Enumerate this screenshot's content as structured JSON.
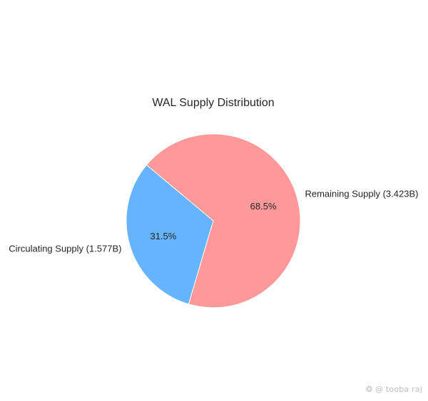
{
  "chart_data": {
    "type": "pie",
    "title": "WAL Supply Distribution",
    "slices": [
      {
        "label": "Circulating Supply (1.577B)",
        "value": 1.577,
        "percent_label": "31.5%",
        "color": "#66b3ff"
      },
      {
        "label": "Remaining Supply (3.423B)",
        "value": 3.423,
        "percent_label": "68.5%",
        "color": "#ff9999"
      }
    ],
    "start_angle_deg": 140,
    "direction": "counterclockwise"
  },
  "watermark": {
    "text": "@ tooba raj",
    "icon": "paw-logo-icon"
  }
}
